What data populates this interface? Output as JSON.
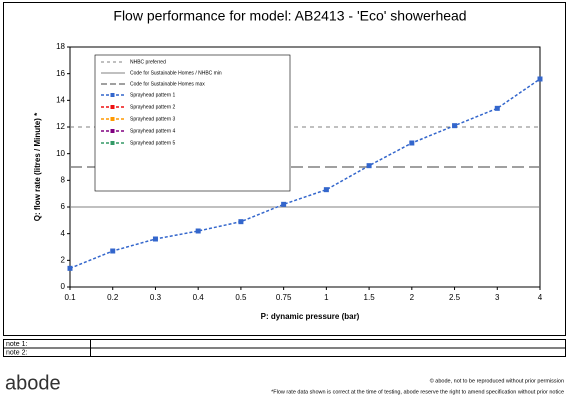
{
  "chart_data": {
    "type": "line",
    "title": "Flow performance for model: AB2413 - 'Eco' showerhead",
    "x_label": "P: dynamic pressure (bar)",
    "y_label": "Q: flow rate (litres  / Minute) *",
    "categories": [
      "0.1",
      "0.2",
      "0.3",
      "0.4",
      "0.5",
      "0.75",
      "1",
      "1.5",
      "2",
      "2.5",
      "3",
      "4"
    ],
    "ylim": [
      0,
      18
    ],
    "yticks": [
      0,
      2,
      4,
      6,
      8,
      10,
      12,
      14,
      16,
      18
    ],
    "reference_lines": [
      {
        "name": "NHBC preferred",
        "value": 12,
        "style": "dashed",
        "color": "#808080"
      },
      {
        "name": "Code for Sustainable Homes / NHBC min",
        "value": 6,
        "style": "solid",
        "color": "#808080"
      },
      {
        "name": "Code for Sustainable Homes max",
        "value": 9,
        "style": "longdash",
        "color": "#808080"
      }
    ],
    "series": [
      {
        "name": "Sprayhead pattern 1",
        "color": "#3366cc",
        "values": [
          1.4,
          2.7,
          3.6,
          4.2,
          4.9,
          6.2,
          7.3,
          9.1,
          10.8,
          12.1,
          13.4,
          15.6
        ]
      },
      {
        "name": "Sprayhead pattern 2",
        "color": "#ee1111",
        "values": [
          null,
          null,
          null,
          null,
          null,
          null,
          null,
          null,
          null,
          null,
          null,
          null
        ]
      },
      {
        "name": "Sprayhead pattern 3",
        "color": "#ff9900",
        "values": [
          null,
          null,
          null,
          null,
          null,
          null,
          null,
          null,
          null,
          null,
          null,
          null
        ]
      },
      {
        "name": "Sprayhead pattern 4",
        "color": "#800080",
        "values": [
          null,
          null,
          null,
          null,
          null,
          null,
          null,
          null,
          null,
          null,
          null,
          null
        ]
      },
      {
        "name": "Sprayhead pattern 5",
        "color": "#339966",
        "values": [
          null,
          null,
          null,
          null,
          null,
          null,
          null,
          null,
          null,
          null,
          null,
          null
        ]
      }
    ]
  },
  "notes": [
    "note 1:",
    "note 2:"
  ],
  "footer": {
    "logo": "abode",
    "copyright": "© abode, not to be reproduced without prior permission",
    "disclaimer": "*Flow rate data shown is correct at the time of testing, abode reserve the right to amend specification without prior notice"
  }
}
